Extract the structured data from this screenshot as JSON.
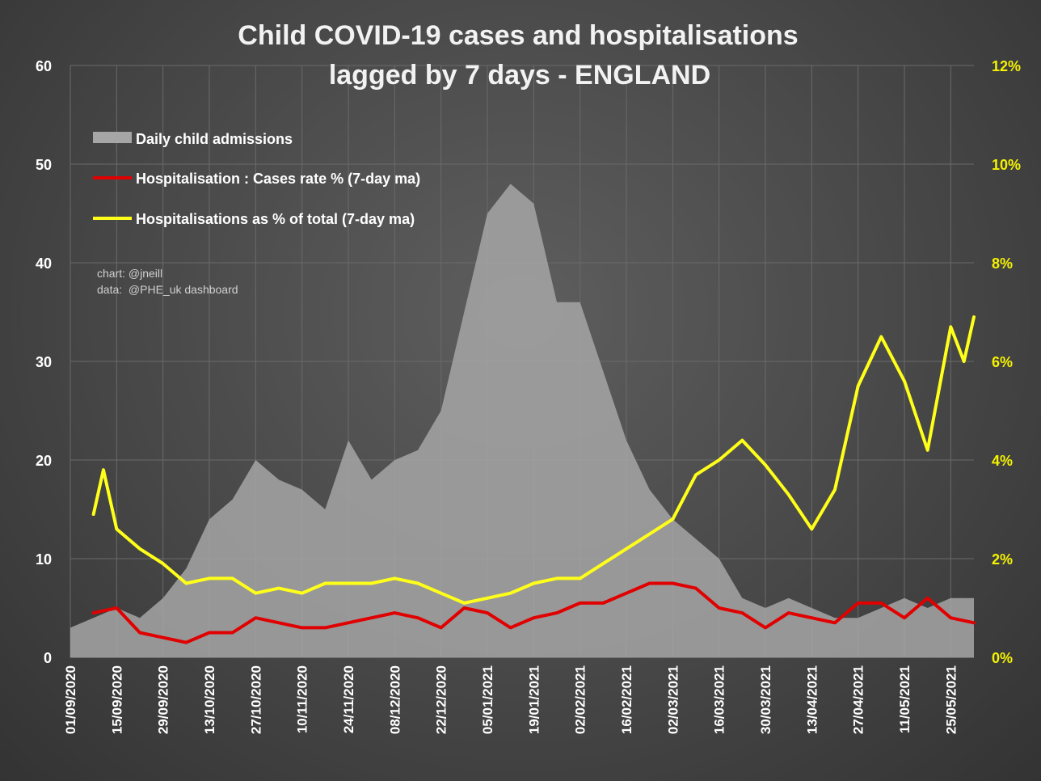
{
  "chart_data": {
    "type": "line",
    "title": [
      "Child COVID-19 cases and hospitalisations",
      "lagged by 7 days - ENGLAND"
    ],
    "xlabel": "",
    "ylabel": "",
    "x_tick_labels": [
      "01/09/2020",
      "15/09/2020",
      "29/09/2020",
      "13/10/2020",
      "27/10/2020",
      "10/11/2020",
      "24/11/2020",
      "08/12/2020",
      "22/12/2020",
      "05/01/2021",
      "19/01/2021",
      "02/02/2021",
      "16/02/2021",
      "02/03/2021",
      "16/03/2021",
      "30/03/2021",
      "13/04/2021",
      "27/04/2021",
      "11/05/2021",
      "25/05/2021"
    ],
    "ylim": [
      0,
      60
    ],
    "y_ticks": [
      0,
      10,
      20,
      30,
      40,
      50,
      60
    ],
    "y_tick_labels": [
      "0",
      "10",
      "20",
      "30",
      "40",
      "50",
      "60"
    ],
    "y2lim": [
      0,
      12
    ],
    "y2_ticks": [
      0,
      2,
      4,
      6,
      8,
      10,
      12
    ],
    "y2_tick_labels": [
      "0%",
      "2%",
      "4%",
      "6%",
      "8%",
      "10%",
      "12%"
    ],
    "grid": true,
    "legend_position": "top-left",
    "legend": [
      {
        "label": "Daily child admissions",
        "color": "#a6a6a6",
        "kind": "area"
      },
      {
        "label": "Hospitalisation : Cases rate % (7-day ma)",
        "color": "#e00000",
        "kind": "line"
      },
      {
        "label": "Hospitalisations as % of total (7-day ma)",
        "color": "#ffff1a",
        "kind": "line"
      }
    ],
    "annotations": [
      "chart: @jneill",
      "data:  @PHE_uk dashboard"
    ],
    "series": [
      {
        "name": "Daily child admissions",
        "type": "area",
        "axis": "left",
        "color": "#a6a6a6",
        "x_days": [
          0,
          7,
          14,
          21,
          28,
          35,
          42,
          49,
          56,
          63,
          70,
          77,
          84,
          91,
          98,
          105,
          112,
          119,
          126,
          133,
          140,
          147,
          154,
          161,
          168,
          175,
          182,
          189,
          196,
          203,
          210,
          217,
          224,
          231,
          238,
          245,
          252,
          259,
          266,
          273
        ],
        "values": [
          3,
          4,
          5,
          4,
          6,
          9,
          14,
          16,
          20,
          18,
          17,
          15,
          22,
          18,
          20,
          21,
          25,
          35,
          45,
          48,
          46,
          36,
          36,
          29,
          22,
          17,
          14,
          12,
          10,
          6,
          5,
          6,
          5,
          4,
          4,
          5,
          6,
          5,
          6,
          6
        ]
      },
      {
        "name": "Hospitalisation : Cases rate % (7-day ma)",
        "type": "line",
        "axis": "right",
        "color": "#e00000",
        "x_days": [
          7,
          14,
          21,
          28,
          35,
          42,
          49,
          56,
          63,
          70,
          77,
          84,
          91,
          98,
          105,
          112,
          119,
          126,
          133,
          140,
          147,
          154,
          161,
          168,
          175,
          182,
          189,
          196,
          203,
          210,
          217,
          224,
          231,
          238,
          245,
          252,
          259,
          266,
          273
        ],
        "values": [
          0.9,
          1.0,
          0.5,
          0.4,
          0.3,
          0.5,
          0.5,
          0.8,
          0.7,
          0.6,
          0.6,
          0.7,
          0.8,
          0.9,
          0.8,
          0.6,
          1.0,
          0.9,
          0.6,
          0.8,
          0.9,
          1.1,
          1.1,
          1.3,
          1.5,
          1.5,
          1.4,
          1.0,
          0.9,
          0.6,
          0.9,
          0.8,
          0.7,
          1.1,
          1.1,
          0.8,
          1.2,
          0.8,
          0.7
        ]
      },
      {
        "name": "Hospitalisations as % of total (7-day ma)",
        "type": "line",
        "axis": "right",
        "color": "#ffff1a",
        "x_days": [
          7,
          10,
          14,
          21,
          28,
          35,
          42,
          49,
          56,
          63,
          70,
          77,
          84,
          91,
          98,
          105,
          112,
          119,
          126,
          133,
          140,
          147,
          154,
          161,
          168,
          175,
          182,
          189,
          196,
          203,
          210,
          217,
          224,
          231,
          238,
          245,
          252,
          259,
          266,
          270,
          273
        ],
        "values": [
          2.9,
          3.8,
          2.6,
          2.2,
          1.9,
          1.5,
          1.6,
          1.6,
          1.3,
          1.4,
          1.3,
          1.5,
          1.5,
          1.5,
          1.6,
          1.5,
          1.3,
          1.1,
          1.2,
          1.3,
          1.5,
          1.6,
          1.6,
          1.9,
          2.2,
          2.5,
          2.8,
          3.7,
          4.0,
          4.4,
          3.9,
          3.3,
          2.6,
          3.4,
          5.5,
          6.5,
          5.6,
          4.2,
          6.7,
          6.0,
          6.9
        ]
      }
    ]
  }
}
